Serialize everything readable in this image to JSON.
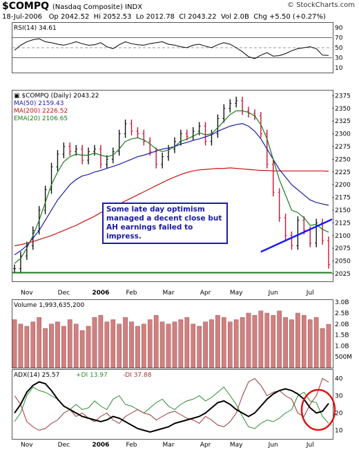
{
  "header": {
    "symbol": "$COMPQ",
    "name": "(Nasdaq Composite) INDX",
    "watermark": "© StockCharts.com",
    "date": "18-Jul-2006",
    "open": "Op 2042.52",
    "high": "Hi 2052.53",
    "low": "Lo 2012.78",
    "close": "Cl 2043.22",
    "volume": "Vol 2.0B",
    "change": "Chg +5.50 (+0.27%)"
  },
  "annotation": "Some late day optimism managed a decent close but AH earnings failed to impress.",
  "colors": {
    "ma50": "#1a1aa8",
    "ma200": "#cc1111",
    "ema20": "#1a7a1a",
    "up_bar": "#111111",
    "down_bar": "#cc1133",
    "volume": "#d08080",
    "support_line": "#1a7a1a",
    "trend_line": "#1a1aff",
    "circle": "#e01010",
    "adx": "#000000",
    "plus_di": "#2a8a2a",
    "minus_di": "#993333"
  },
  "chart_data": [
    {
      "type": "line",
      "legend": "RSI(14) 34.61",
      "series": [
        {
          "name": "RSI(14)",
          "values": [
            45,
            55,
            62,
            66,
            68,
            62,
            60,
            57,
            55,
            58,
            62,
            58,
            55,
            56,
            60,
            52,
            48,
            56,
            62,
            58,
            56,
            55,
            58,
            60,
            62,
            57,
            55,
            52,
            50,
            55,
            57,
            53,
            50,
            56,
            60,
            57,
            50,
            42,
            32,
            28,
            35,
            40,
            33,
            34,
            38,
            44,
            48,
            50,
            52,
            48,
            35,
            34.61
          ]
        }
      ],
      "x_labels": [
        "Nov",
        "Dec",
        "2006",
        "Feb",
        "Mar",
        "Apr",
        "May",
        "Jun",
        "Jul"
      ],
      "yticks": [
        10,
        30,
        50,
        70,
        90
      ],
      "ylim": [
        0,
        100
      ],
      "reference_lines": [
        30,
        50,
        70
      ]
    },
    {
      "type": "ohlc",
      "legend": [
        "$COMPQ (Daily) 2043.22",
        "MA(50) 2159.43",
        "MA(200) 2226.52",
        "EMA(20) 2106.65"
      ],
      "x_labels": [
        "Nov",
        "Dec",
        "2006",
        "Feb",
        "Mar",
        "Apr",
        "May",
        "Jun",
        "Jul"
      ],
      "yticks": [
        2025,
        2050,
        2075,
        2100,
        2125,
        2150,
        2175,
        2200,
        2225,
        2250,
        2275,
        2300,
        2325,
        2350,
        2375
      ],
      "ylim": [
        2010,
        2385
      ],
      "close": [
        2035,
        2060,
        2080,
        2110,
        2150,
        2190,
        2235,
        2260,
        2275,
        2265,
        2270,
        2248,
        2265,
        2270,
        2240,
        2250,
        2265,
        2300,
        2320,
        2305,
        2300,
        2285,
        2265,
        2240,
        2255,
        2270,
        2285,
        2300,
        2295,
        2305,
        2315,
        2285,
        2300,
        2330,
        2350,
        2360,
        2365,
        2345,
        2340,
        2335,
        2300,
        2240,
        2185,
        2135,
        2100,
        2080,
        2130,
        2110,
        2085,
        2125,
        2090,
        2043
      ],
      "ma50": [
        2062,
        2070,
        2080,
        2095,
        2110,
        2130,
        2150,
        2170,
        2185,
        2200,
        2210,
        2217,
        2220,
        2225,
        2228,
        2232,
        2236,
        2240,
        2245,
        2250,
        2255,
        2258,
        2262,
        2266,
        2270,
        2272,
        2275,
        2280,
        2283,
        2287,
        2290,
        2294,
        2298,
        2305,
        2310,
        2315,
        2318,
        2320,
        2315,
        2305,
        2290,
        2270,
        2250,
        2230,
        2215,
        2200,
        2190,
        2180,
        2170,
        2165,
        2162,
        2159.43
      ],
      "ma200": [
        2080,
        2082,
        2085,
        2088,
        2092,
        2096,
        2100,
        2105,
        2110,
        2115,
        2120,
        2126,
        2132,
        2138,
        2145,
        2150,
        2156,
        2162,
        2168,
        2174,
        2180,
        2186,
        2192,
        2198,
        2204,
        2210,
        2215,
        2220,
        2224,
        2227,
        2229,
        2230,
        2231,
        2232,
        2232,
        2233,
        2232,
        2231,
        2230,
        2229,
        2228,
        2228,
        2227,
        2227,
        2227,
        2227,
        2227,
        2227,
        2227,
        2227,
        2227,
        2226.52
      ],
      "ema20": [
        2045,
        2055,
        2075,
        2100,
        2130,
        2165,
        2200,
        2225,
        2245,
        2255,
        2260,
        2258,
        2258,
        2262,
        2258,
        2255,
        2258,
        2270,
        2285,
        2290,
        2292,
        2288,
        2280,
        2270,
        2265,
        2268,
        2275,
        2285,
        2290,
        2295,
        2302,
        2298,
        2300,
        2312,
        2325,
        2338,
        2345,
        2345,
        2342,
        2335,
        2318,
        2290,
        2250,
        2210,
        2180,
        2150,
        2145,
        2135,
        2120,
        2122,
        2112,
        2106.65
      ],
      "support_line": 2027,
      "trend_line": {
        "from": 2068,
        "to": 2132
      }
    },
    {
      "type": "bar",
      "legend": "Volume 1,993,635,200",
      "x_labels": [
        "Nov",
        "Dec",
        "2006",
        "Feb",
        "Mar",
        "Apr",
        "May",
        "Jun",
        "Jul"
      ],
      "yticks": [
        "500M",
        "1.0B",
        "1.5B",
        "2.0B",
        "2.5B",
        "3.0B"
      ],
      "ylim": [
        0,
        3.1
      ],
      "values": [
        2.2,
        2.0,
        1.9,
        2.1,
        2.3,
        1.8,
        2.0,
        2.1,
        1.9,
        2.2,
        2.0,
        1.7,
        1.9,
        2.3,
        2.4,
        2.1,
        2.2,
        2.0,
        2.3,
        2.1,
        1.9,
        2.0,
        2.2,
        2.4,
        2.1,
        2.0,
        2.1,
        2.2,
        2.3,
        2.0,
        1.9,
        2.1,
        2.2,
        2.4,
        2.3,
        2.1,
        2.2,
        2.3,
        2.5,
        2.4,
        2.6,
        2.5,
        2.4,
        2.6,
        2.3,
        2.2,
        2.5,
        2.4,
        2.2,
        2.3,
        1.8,
        1.99
      ]
    },
    {
      "type": "line",
      "legend": {
        "adx": "ADX(14) 25.57",
        "plus_di": "+DI 13.97",
        "minus_di": "-DI 37.88"
      },
      "x_labels": [
        "Nov",
        "Dec",
        "2006",
        "Feb",
        "Mar",
        "Apr",
        "May",
        "Jun",
        "Jul"
      ],
      "yticks": [
        10,
        20,
        30,
        40
      ],
      "ylim": [
        5,
        45
      ],
      "series": [
        {
          "name": "ADX(14)",
          "values": [
            20,
            25,
            32,
            36,
            38,
            37,
            33,
            28,
            24,
            22,
            20,
            18,
            17,
            16,
            15,
            16,
            18,
            17,
            15,
            13,
            11,
            10,
            9,
            10,
            11,
            12,
            14,
            15,
            16,
            17,
            18,
            20,
            23,
            26,
            27,
            25,
            22,
            20,
            18,
            20,
            24,
            28,
            31,
            33,
            34,
            33,
            31,
            28,
            23,
            20,
            21,
            25.57
          ]
        },
        {
          "name": "+DI",
          "values": [
            15,
            20,
            30,
            35,
            33,
            32,
            30,
            28,
            24,
            22,
            25,
            22,
            23,
            27,
            24,
            22,
            28,
            30,
            25,
            24,
            22,
            20,
            23,
            26,
            28,
            24,
            22,
            25,
            27,
            28,
            30,
            27,
            29,
            32,
            35,
            30,
            25,
            18,
            12,
            11,
            14,
            16,
            15,
            17,
            20,
            22,
            30,
            32,
            27,
            26,
            18,
            13.97
          ]
        },
        {
          "name": "-DI",
          "values": [
            30,
            25,
            15,
            12,
            10,
            11,
            14,
            16,
            20,
            22,
            18,
            20,
            17,
            15,
            18,
            20,
            16,
            14,
            18,
            20,
            22,
            20,
            19,
            16,
            18,
            20,
            21,
            19,
            17,
            16,
            14,
            18,
            16,
            13,
            12,
            15,
            20,
            30,
            38,
            40,
            36,
            30,
            32,
            33,
            30,
            28,
            20,
            18,
            25,
            30,
            40,
            37.88
          ]
        }
      ]
    }
  ]
}
